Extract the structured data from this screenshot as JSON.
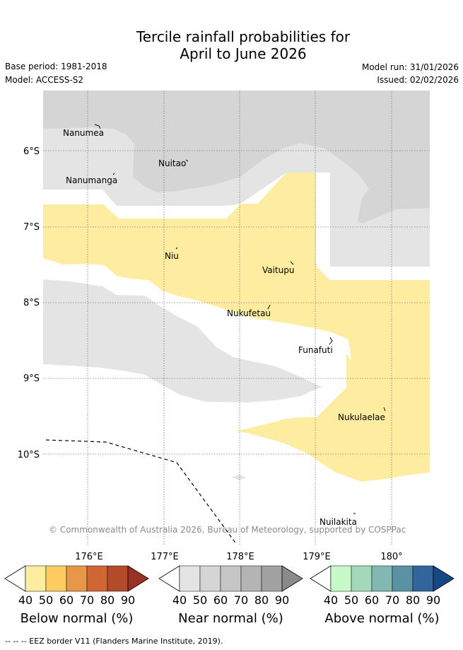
{
  "header": {
    "title_line1": "Tercile rainfall probabilities for",
    "title_line2": "April to June 2026",
    "base_period": "Base period: 1981-2018",
    "model": "Model: ACCESS-S2",
    "model_run": "Model run: 31/01/2026",
    "issued": "Issued: 02/02/2026"
  },
  "map": {
    "lat_labels": [
      "6°S",
      "7°S",
      "8°S",
      "9°S",
      "10°S"
    ],
    "lon_labels": [
      "176°E",
      "177°E",
      "178°E",
      "179°E",
      "180°"
    ],
    "places": [
      "Nanumea",
      "Nuitao",
      "Nanumanga",
      "Niu",
      "Vaitupu",
      "Nukufetau",
      "Funafuti",
      "Nukulaelae",
      "Nuilakita"
    ],
    "copyright": "© Commonwealth of Australia 2026, Bureau of Meteorology, supported by COSPPac"
  },
  "legend": {
    "ticks": [
      "40",
      "50",
      "60",
      "70",
      "80",
      "90"
    ],
    "below": {
      "title": "Below normal (%)",
      "colors": [
        "#ffffff",
        "#feeda0",
        "#fecc61",
        "#e79748",
        "#d26534",
        "#b34b2a",
        "#9a3223"
      ]
    },
    "near": {
      "title": "Near normal (%)",
      "colors": [
        "#ffffff",
        "#e4e4e4",
        "#d5d5d5",
        "#c6c6c6",
        "#b4b4b4",
        "#a1a1a1",
        "#8a8a8a"
      ]
    },
    "above": {
      "title": "Above normal (%)",
      "colors": [
        "#ffffff",
        "#c7f9c9",
        "#a2d9bb",
        "#82b7b2",
        "#5b91a4",
        "#32659b",
        "#144983"
      ]
    }
  },
  "footer": {
    "eez_note": "-- -- -- EEZ border V11 (Flanders Marine Institute, 2019)."
  }
}
